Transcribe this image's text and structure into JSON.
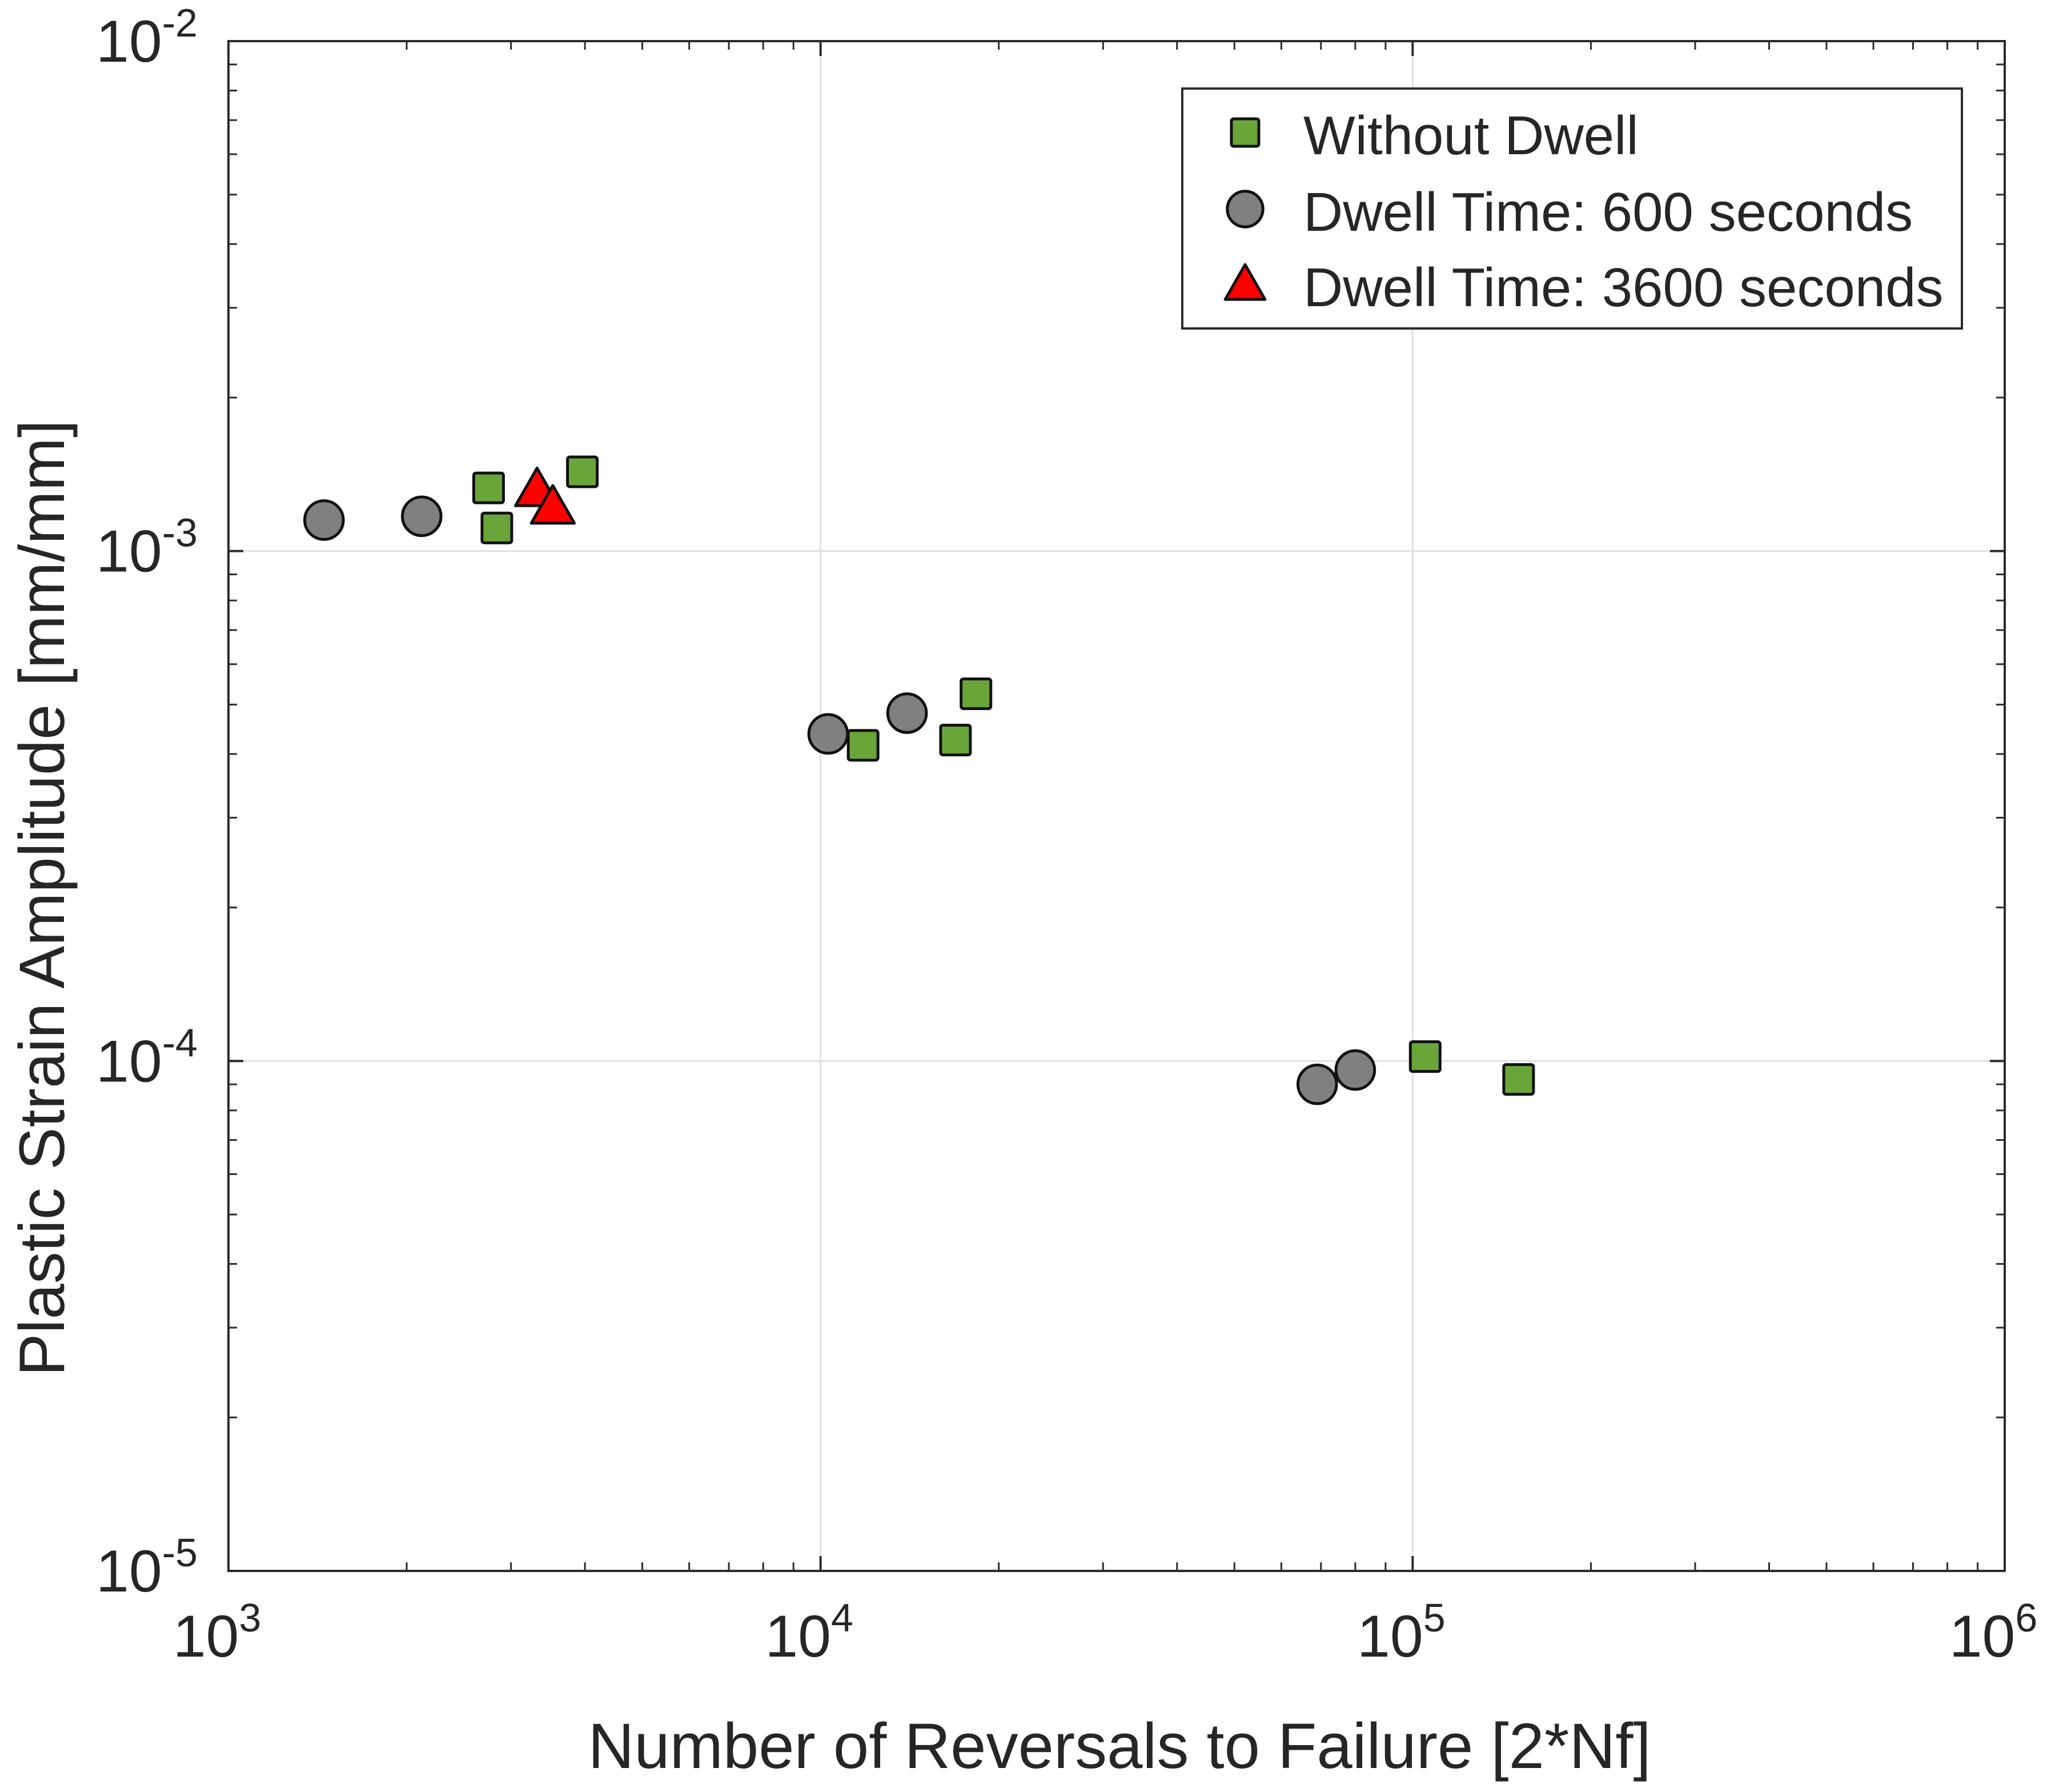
{
  "chart_data": {
    "type": "scatter",
    "xscale": "log",
    "yscale": "log",
    "xlim": [
      1000,
      1000000
    ],
    "ylim": [
      1e-05,
      0.01
    ],
    "xlabel": "Number of Reversals to Failure [2*Nf]",
    "ylabel": "Plastic Strain Amplitude [mm/mm]",
    "grid": true,
    "legend_position": "top-right",
    "x_ticks": [
      {
        "value": 1000,
        "base": "10",
        "exp": "3"
      },
      {
        "value": 10000,
        "base": "10",
        "exp": "4"
      },
      {
        "value": 100000,
        "base": "10",
        "exp": "5"
      },
      {
        "value": 1000000,
        "base": "10",
        "exp": "6"
      }
    ],
    "y_ticks": [
      {
        "value": 1e-05,
        "base": "10",
        "exp": "-5"
      },
      {
        "value": 0.0001,
        "base": "10",
        "exp": "-4"
      },
      {
        "value": 0.001,
        "base": "10",
        "exp": "-3"
      },
      {
        "value": 0.01,
        "base": "10",
        "exp": "-2"
      }
    ],
    "series": [
      {
        "name": "Without Dwell",
        "marker": "square",
        "color": "#6aa53a",
        "points": [
          {
            "x": 2750,
            "y": 0.00133
          },
          {
            "x": 2840,
            "y": 0.00111
          },
          {
            "x": 3960,
            "y": 0.00143
          },
          {
            "x": 11800,
            "y": 0.000416
          },
          {
            "x": 16900,
            "y": 0.000426
          },
          {
            "x": 18300,
            "y": 0.000525
          },
          {
            "x": 105000,
            "y": 0.000102
          },
          {
            "x": 151000,
            "y": 9.2e-05
          }
        ]
      },
      {
        "name": "Dwell Time: 600 seconds",
        "marker": "circle",
        "color": "#808080",
        "points": [
          {
            "x": 1450,
            "y": 0.00115
          },
          {
            "x": 2120,
            "y": 0.00117
          },
          {
            "x": 10300,
            "y": 0.000438
          },
          {
            "x": 14000,
            "y": 0.000481
          },
          {
            "x": 69000,
            "y": 9e-05
          },
          {
            "x": 80000,
            "y": 9.6e-05
          }
        ]
      },
      {
        "name": "Dwell Time: 3600 seconds",
        "marker": "triangle",
        "color": "#ff0000",
        "points": [
          {
            "x": 3320,
            "y": 0.00132
          },
          {
            "x": 3530,
            "y": 0.00122
          }
        ]
      }
    ]
  }
}
